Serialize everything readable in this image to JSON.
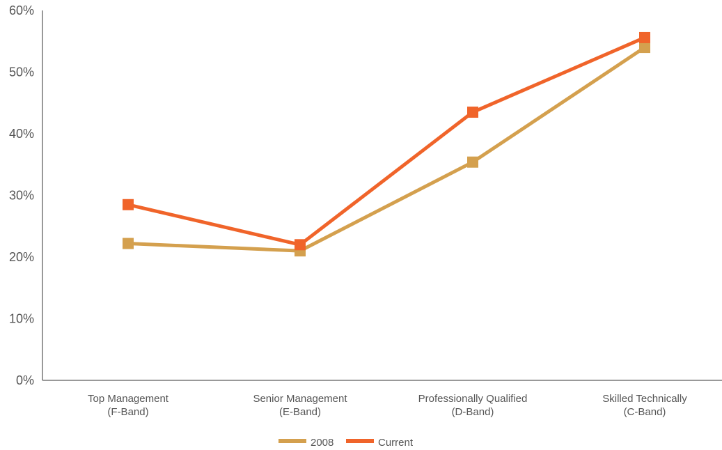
{
  "chart_data": {
    "type": "line",
    "categories": [
      [
        "Top Management",
        "(F-Band)"
      ],
      [
        "Senior Management",
        "(E-Band)"
      ],
      [
        "Professionally Qualified",
        "(D-Band)"
      ],
      [
        "Skilled Technically",
        "(C-Band)"
      ]
    ],
    "y_ticks": [
      "0%",
      "10%",
      "20%",
      "30%",
      "40%",
      "50%",
      "60%"
    ],
    "ylim": [
      0,
      60
    ],
    "series": [
      {
        "name": "2008",
        "values": [
          22.2,
          21.0,
          35.4,
          54.0
        ],
        "color": "#D4A04E"
      },
      {
        "name": "Current",
        "values": [
          28.5,
          22.0,
          43.5,
          55.6
        ],
        "color": "#F0642A"
      }
    ],
    "legend_position": "bottom-center",
    "grid": false
  }
}
